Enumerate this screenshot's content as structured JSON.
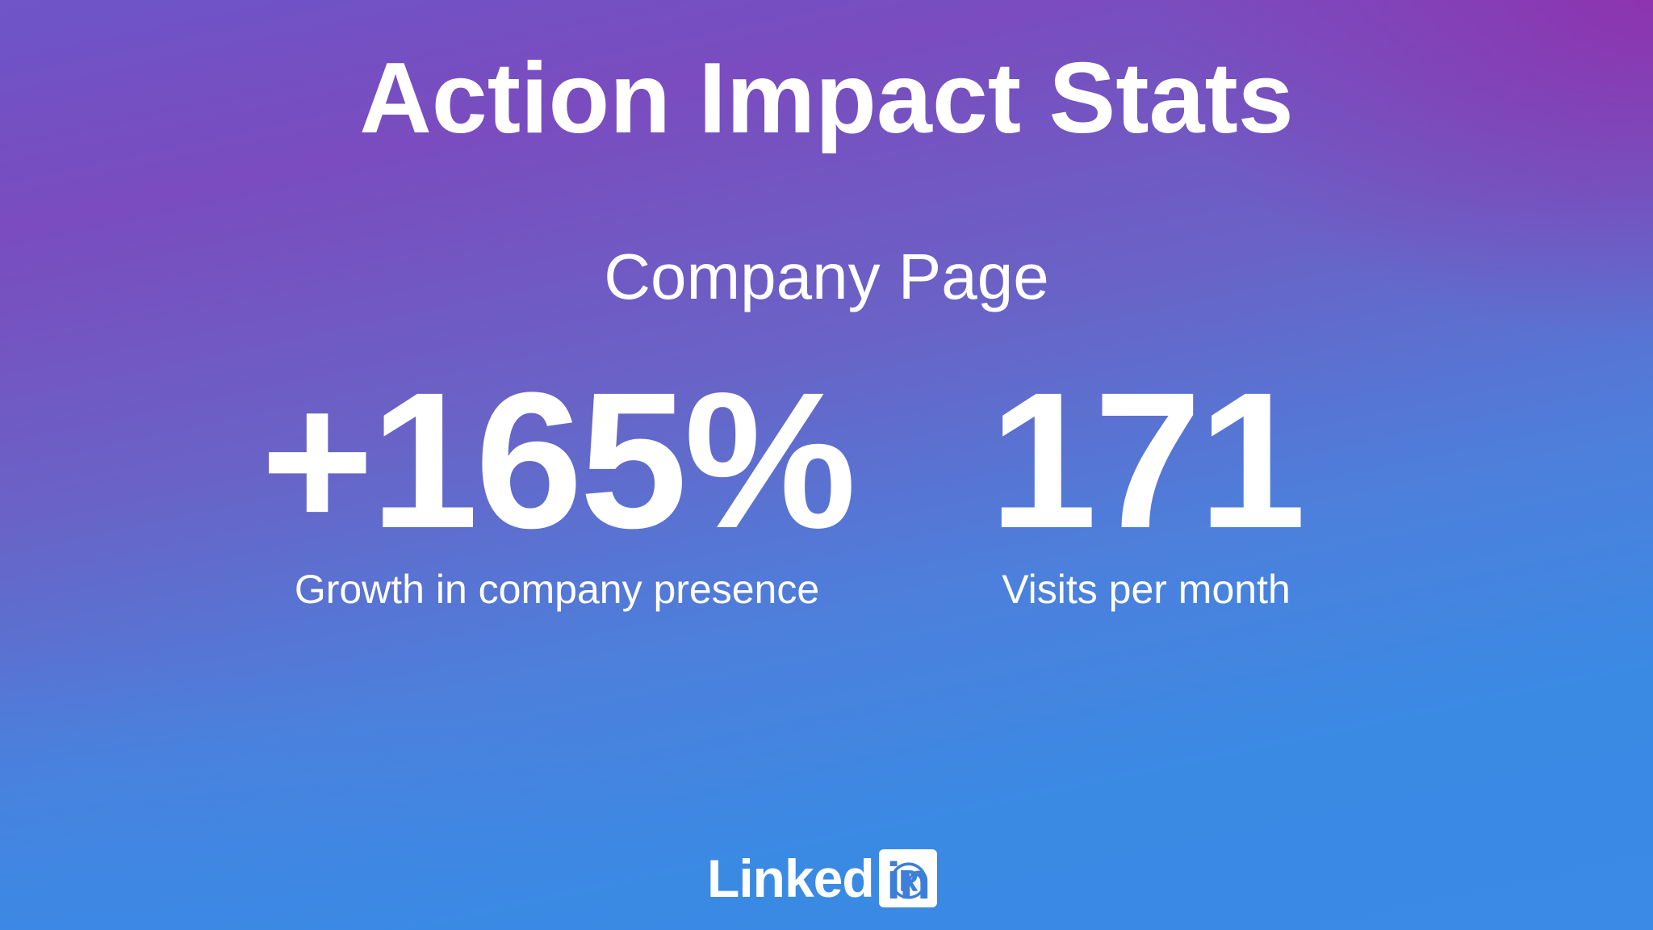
{
  "slide": {
    "title": "Action Impact Stats",
    "subtitle": "Company Page"
  },
  "stats": [
    {
      "value": "+165%",
      "label": "Growth in company presence"
    },
    {
      "value": "171",
      "label": "Visits per month"
    }
  ],
  "logo": {
    "word": "Linked",
    "box_text": "in",
    "icon": "linkedin-logo-icon"
  },
  "colors": {
    "text": "#ffffff",
    "gradient_top_right": "#8e2fa8",
    "gradient_mid": "#6a62c6",
    "gradient_bottom": "#3a8ae6",
    "logo_box_text": "#3d7fd8"
  }
}
